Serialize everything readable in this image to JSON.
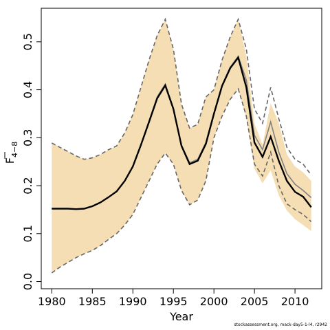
{
  "chart_data": {
    "type": "line",
    "xlabel": "Year",
    "ylabel_main": "F",
    "ylabel_sub": "4−8",
    "xlim": [
      1978.7,
      2013.3
    ],
    "ylim": [
      -0.015,
      0.57
    ],
    "x_ticks": [
      1980,
      1985,
      1990,
      1995,
      2000,
      2005,
      2010
    ],
    "y_ticks": [
      0.0,
      0.1,
      0.2,
      0.3,
      0.4,
      0.5
    ],
    "grid": false,
    "colors": {
      "band": "#f5deb3",
      "estimate": "#000000",
      "previous_estimate": "#808080",
      "previous_bounds": "#666666"
    },
    "x": [
      1980,
      1981,
      1982,
      1983,
      1984,
      1985,
      1986,
      1987,
      1988,
      1989,
      1990,
      1991,
      1992,
      1993,
      1994,
      1995,
      1996,
      1997,
      1998,
      1999,
      2000,
      2001,
      2002,
      2003,
      2004,
      2005,
      2006,
      2007,
      2008,
      2009,
      2010,
      2011,
      2012
    ],
    "series": [
      {
        "role": "band_upper",
        "values": [
          0.289,
          0.28,
          0.271,
          0.262,
          0.255,
          0.258,
          0.265,
          0.275,
          0.283,
          0.31,
          0.348,
          0.405,
          0.462,
          0.513,
          0.547,
          0.485,
          0.37,
          0.32,
          0.328,
          0.385,
          0.4,
          0.462,
          0.51,
          0.547,
          0.47,
          0.33,
          0.285,
          0.372,
          0.33,
          0.265,
          0.24,
          0.228,
          0.21
        ]
      },
      {
        "role": "band_lower",
        "values": [
          0.018,
          0.03,
          0.04,
          0.05,
          0.058,
          0.065,
          0.075,
          0.088,
          0.1,
          0.118,
          0.14,
          0.175,
          0.21,
          0.245,
          0.268,
          0.245,
          0.19,
          0.16,
          0.17,
          0.21,
          0.3,
          0.345,
          0.38,
          0.402,
          0.34,
          0.235,
          0.205,
          0.232,
          0.18,
          0.148,
          0.13,
          0.118,
          0.105
        ]
      },
      {
        "role": "estimate",
        "values": [
          0.152,
          0.152,
          0.152,
          0.151,
          0.152,
          0.157,
          0.165,
          0.176,
          0.188,
          0.21,
          0.24,
          0.285,
          0.333,
          0.382,
          0.409,
          0.36,
          0.283,
          0.245,
          0.252,
          0.287,
          0.35,
          0.408,
          0.445,
          0.467,
          0.405,
          0.29,
          0.26,
          0.302,
          0.252,
          0.21,
          0.187,
          0.177,
          0.155
        ]
      },
      {
        "role": "previous_estimate",
        "values": [
          0.152,
          0.152,
          0.152,
          0.151,
          0.152,
          0.157,
          0.165,
          0.176,
          0.188,
          0.21,
          0.24,
          0.285,
          0.335,
          0.385,
          0.412,
          0.362,
          0.285,
          0.248,
          0.255,
          0.29,
          0.352,
          0.41,
          0.447,
          0.47,
          0.42,
          0.305,
          0.275,
          0.333,
          0.27,
          0.225,
          0.203,
          0.19,
          0.175
        ]
      },
      {
        "role": "previous_upper",
        "values": [
          0.289,
          0.28,
          0.271,
          0.262,
          0.255,
          0.258,
          0.265,
          0.275,
          0.283,
          0.31,
          0.348,
          0.405,
          0.462,
          0.513,
          0.547,
          0.485,
          0.37,
          0.32,
          0.328,
          0.385,
          0.4,
          0.462,
          0.51,
          0.547,
          0.485,
          0.36,
          0.33,
          0.405,
          0.34,
          0.28,
          0.255,
          0.245,
          0.222
        ]
      },
      {
        "role": "previous_lower",
        "values": [
          0.018,
          0.03,
          0.04,
          0.05,
          0.058,
          0.065,
          0.075,
          0.088,
          0.1,
          0.118,
          0.14,
          0.175,
          0.21,
          0.245,
          0.268,
          0.245,
          0.19,
          0.16,
          0.17,
          0.21,
          0.3,
          0.345,
          0.38,
          0.402,
          0.345,
          0.245,
          0.22,
          0.27,
          0.2,
          0.162,
          0.15,
          0.14,
          0.125
        ]
      }
    ]
  },
  "footer": {
    "note": "stockassessment.org, mack-day5-1-l4, r2942"
  }
}
